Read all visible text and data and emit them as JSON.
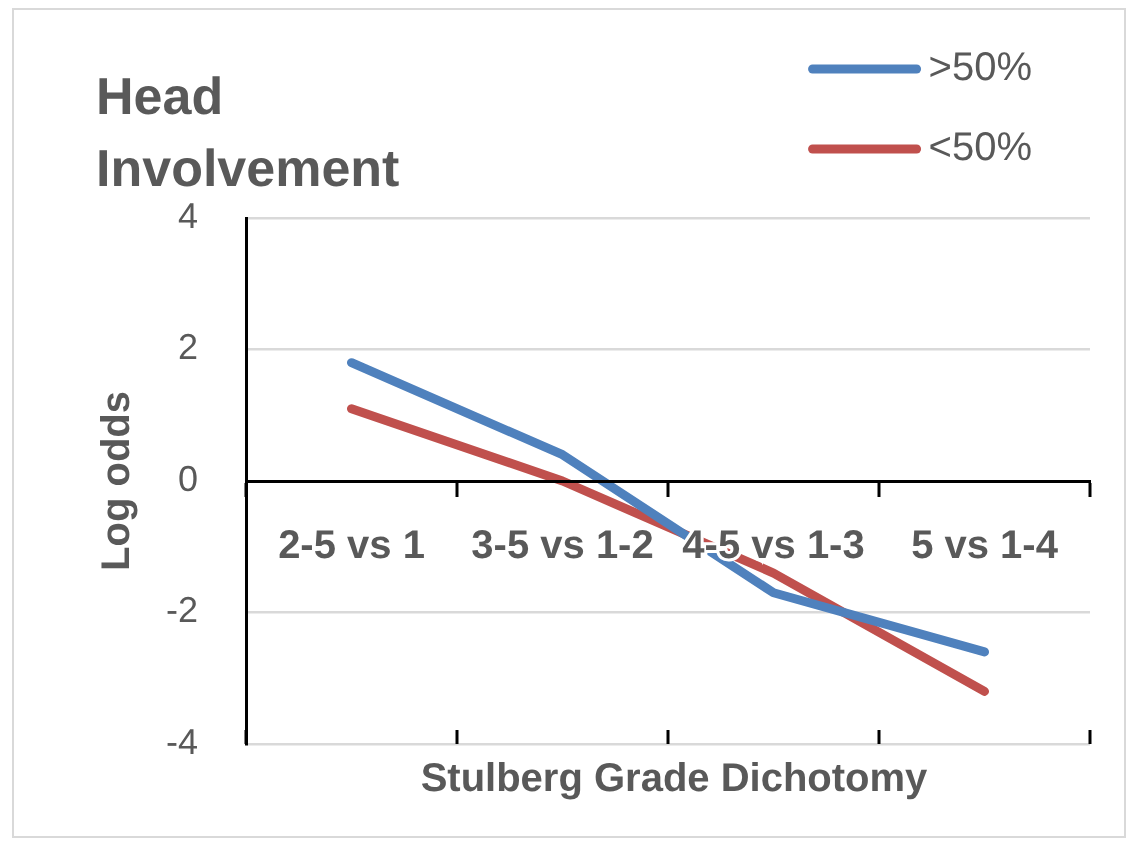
{
  "chart_data": {
    "type": "line",
    "title": "Head Involvement",
    "xlabel": "Stulberg Grade Dichotomy",
    "ylabel": "Log odds",
    "categories": [
      "2-5 vs 1",
      "3-5 vs 1-2",
      "4-5 vs 1-3",
      "5 vs 1-4"
    ],
    "series": [
      {
        "name": ">50%",
        "color": "#4f81bd",
        "values": [
          1.8,
          0.4,
          -1.7,
          -2.6
        ]
      },
      {
        "name": "<50%",
        "color": "#c0504d",
        "values": [
          1.1,
          0.0,
          -1.4,
          -3.2
        ]
      }
    ],
    "ylim": [
      -4,
      4
    ],
    "yticks": [
      -4,
      -2,
      0,
      2,
      4
    ],
    "grid": "y",
    "legend": "top right",
    "marker": "none",
    "line_style": "solid"
  }
}
